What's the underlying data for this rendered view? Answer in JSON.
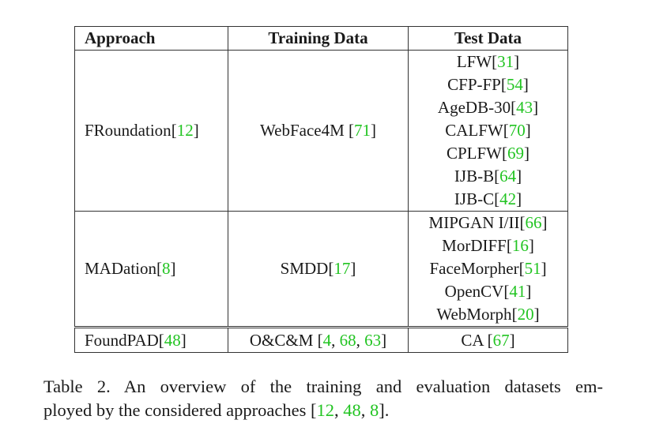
{
  "table": {
    "headers": [
      "Approach",
      "Training Data",
      "Test Data"
    ],
    "rows": [
      {
        "approach": {
          "text": "FRoundation",
          "cites": [
            "12"
          ]
        },
        "training": {
          "text": "WebFace4M ",
          "cites": [
            "71"
          ]
        },
        "test": [
          {
            "text": "LFW",
            "cites": [
              "31"
            ]
          },
          {
            "text": "CFP-FP",
            "cites": [
              "54"
            ]
          },
          {
            "text": "AgeDB-30",
            "cites": [
              "43"
            ]
          },
          {
            "text": "CALFW",
            "cites": [
              "70"
            ]
          },
          {
            "text": "CPLFW",
            "cites": [
              "69"
            ]
          },
          {
            "text": "IJB-B",
            "cites": [
              "64"
            ]
          },
          {
            "text": "IJB-C",
            "cites": [
              "42"
            ]
          }
        ]
      },
      {
        "approach": {
          "text": "MADation",
          "cites": [
            "8"
          ]
        },
        "training": {
          "text": "SMDD",
          "cites": [
            "17"
          ]
        },
        "test": [
          {
            "text": "MIPGAN I/II",
            "cites": [
              "66"
            ]
          },
          {
            "text": "MorDIFF",
            "cites": [
              "16"
            ]
          },
          {
            "text": "FaceMorpher",
            "cites": [
              "51"
            ]
          },
          {
            "text": "OpenCV",
            "cites": [
              "41"
            ]
          },
          {
            "text": "WebMorph",
            "cites": [
              "20"
            ]
          }
        ]
      },
      {
        "approach": {
          "text": "FoundPAD",
          "cites": [
            "48"
          ]
        },
        "training": {
          "text": "O&C&M ",
          "cites": [
            "4",
            "68",
            "63"
          ]
        },
        "test": [
          {
            "text": "CA ",
            "cites": [
              "67"
            ]
          }
        ]
      }
    ]
  },
  "caption": {
    "line1": "Table 2. An overview of the training and evaluation datasets em-",
    "line2": {
      "text": "ployed by the considered approaches ",
      "cites": [
        "12",
        "48",
        "8"
      ],
      "end": "."
    }
  },
  "colors": {
    "citation": "#22c422",
    "text": "#1a1a1a"
  }
}
